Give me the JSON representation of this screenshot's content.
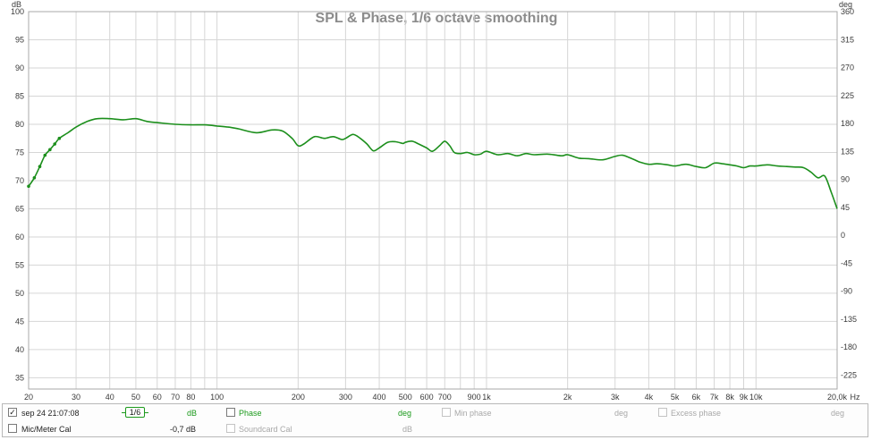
{
  "chart_data": {
    "type": "line",
    "title": "SPL & Phase, 1/6 octave smoothing",
    "ylabel_left": "dB",
    "ylabel_right": "deg",
    "xunit": "Hz",
    "xscale": "log",
    "xlim": [
      20,
      20000
    ],
    "ylim": [
      33,
      100
    ],
    "ylim_right": [
      -247.5,
      360
    ],
    "grid": true,
    "x_ticks": [
      {
        "v": 20,
        "label": "20"
      },
      {
        "v": 30,
        "label": "30"
      },
      {
        "v": 40,
        "label": "40"
      },
      {
        "v": 50,
        "label": "50"
      },
      {
        "v": 60,
        "label": "60"
      },
      {
        "v": 70,
        "label": "70"
      },
      {
        "v": 80,
        "label": "80"
      },
      {
        "v": 100,
        "label": "100"
      },
      {
        "v": 200,
        "label": "200"
      },
      {
        "v": 300,
        "label": "300"
      },
      {
        "v": 400,
        "label": "400"
      },
      {
        "v": 500,
        "label": "500"
      },
      {
        "v": 600,
        "label": "600"
      },
      {
        "v": 700,
        "label": "700"
      },
      {
        "v": 900,
        "label": "900"
      },
      {
        "v": 1000,
        "label": "1k"
      },
      {
        "v": 2000,
        "label": "2k"
      },
      {
        "v": 3000,
        "label": "3k"
      },
      {
        "v": 4000,
        "label": "4k"
      },
      {
        "v": 5000,
        "label": "5k"
      },
      {
        "v": 6000,
        "label": "6k"
      },
      {
        "v": 7000,
        "label": "7k"
      },
      {
        "v": 8000,
        "label": "8k"
      },
      {
        "v": 9000,
        "label": "9k"
      },
      {
        "v": 10000,
        "label": "10k"
      },
      {
        "v": 20000,
        "label": "20,0k"
      }
    ],
    "x_minor_ticks": [
      90,
      800
    ],
    "y_ticks_left": [
      100,
      95,
      90,
      85,
      80,
      75,
      70,
      65,
      60,
      55,
      50,
      45,
      40,
      35
    ],
    "y_ticks_right": [
      360,
      315,
      270,
      225,
      180,
      135,
      90,
      45,
      0,
      -45,
      -90,
      -135,
      -180,
      -225
    ],
    "series": [
      {
        "name": "sep 24 21:07:08",
        "color": "#1c8f1c",
        "x": [
          20,
          21,
          22,
          23,
          24,
          25,
          26,
          28,
          30,
          33,
          36,
          40,
          45,
          50,
          55,
          60,
          70,
          80,
          90,
          100,
          110,
          120,
          140,
          160,
          175,
          190,
          200,
          210,
          230,
          250,
          270,
          290,
          300,
          320,
          340,
          360,
          380,
          400,
          430,
          460,
          490,
          500,
          530,
          560,
          600,
          630,
          670,
          700,
          730,
          760,
          800,
          850,
          900,
          950,
          1000,
          1100,
          1200,
          1300,
          1400,
          1500,
          1700,
          1900,
          2000,
          2200,
          2400,
          2700,
          3000,
          3200,
          3500,
          3700,
          4000,
          4300,
          4700,
          5000,
          5500,
          6000,
          6500,
          7000,
          7500,
          8000,
          8500,
          9000,
          9500,
          10000,
          11000,
          12000,
          13000,
          14000,
          15000,
          16000,
          17000,
          18000,
          19000,
          20000
        ],
        "y": [
          69.0,
          70.5,
          72.5,
          74.5,
          75.5,
          76.5,
          77.5,
          78.5,
          79.5,
          80.5,
          81.0,
          81.0,
          80.8,
          81.0,
          80.5,
          80.3,
          80.0,
          79.9,
          79.9,
          79.7,
          79.5,
          79.2,
          78.5,
          79.0,
          78.8,
          77.5,
          76.2,
          76.5,
          77.8,
          77.5,
          77.8,
          77.3,
          77.5,
          78.2,
          77.5,
          76.5,
          75.3,
          75.8,
          76.8,
          76.9,
          76.6,
          76.8,
          77.0,
          76.5,
          75.8,
          75.2,
          76.2,
          77.0,
          76.2,
          75.0,
          74.8,
          75.0,
          74.6,
          74.7,
          75.2,
          74.6,
          74.8,
          74.4,
          74.8,
          74.6,
          74.7,
          74.4,
          74.6,
          74.0,
          73.9,
          73.7,
          74.3,
          74.5,
          73.8,
          73.3,
          72.9,
          73.0,
          72.8,
          72.6,
          72.9,
          72.5,
          72.3,
          73.1,
          73.0,
          72.8,
          72.6,
          72.3,
          72.6,
          72.6,
          72.8,
          72.6,
          72.5,
          72.4,
          72.3,
          71.5,
          70.5,
          70.8,
          68.0,
          65.0
        ]
      }
    ]
  },
  "legend": {
    "row1": {
      "measurement_name": "sep 24 21:07:08",
      "measurement_checked": "✓",
      "smoothing_label": "1/6",
      "unit_db": "dB",
      "phase_label": "Phase",
      "unit_deg": "deg",
      "min_phase_label": "Min phase",
      "min_phase_unit": "deg",
      "excess_phase_label": "Excess phase",
      "excess_phase_unit": "deg"
    },
    "row2": {
      "mic_cal_label": "Mic/Meter Cal",
      "mic_cal_value": "-0,7 dB",
      "soundcard_cal_label": "Soundcard Cal",
      "soundcard_cal_unit": "dB"
    }
  }
}
